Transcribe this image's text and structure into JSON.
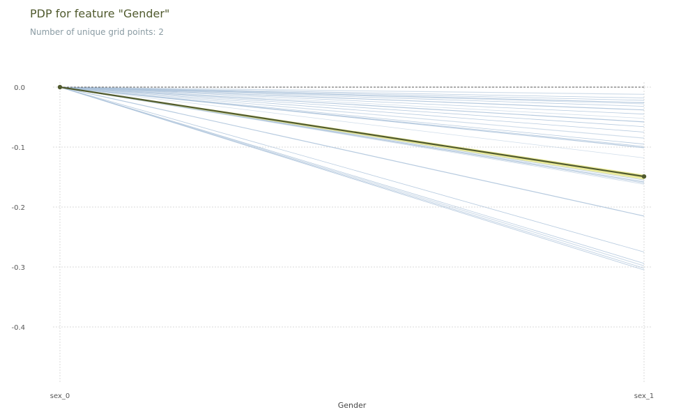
{
  "chart_data": {
    "type": "line",
    "title": "PDP for feature \"Gender\"",
    "subtitle": "Number of unique grid points: 2",
    "xlabel": "Gender",
    "ylabel": "",
    "categories": [
      "sex_0",
      "sex_1"
    ],
    "ylim": [
      -0.5,
      0.02
    ],
    "yticks": [
      0.0,
      -0.1,
      -0.2,
      -0.3,
      -0.4
    ],
    "ytick_labels": [
      "0.0",
      "-0.1",
      "-0.2",
      "-0.3",
      "-0.4"
    ],
    "grid": true,
    "baseline": 0.0,
    "ice_endpoints": [
      -0.012,
      -0.018,
      -0.022,
      -0.026,
      -0.028,
      -0.032,
      -0.038,
      -0.045,
      -0.052,
      -0.058,
      -0.066,
      -0.075,
      -0.085,
      -0.095,
      -0.099,
      -0.101,
      -0.118,
      -0.155,
      -0.158,
      -0.16,
      -0.162,
      -0.215,
      -0.275,
      -0.294,
      -0.298,
      -0.302,
      -0.305
    ],
    "pdp": {
      "values": [
        0.0,
        -0.149
      ],
      "std_band": [
        -0.146,
        -0.154
      ]
    },
    "colors": {
      "pdp_line": "#505a2e",
      "pdp_band": "#e6e68a",
      "ice_line": "#a9c1d9",
      "grid": "#d9d9d9",
      "baseline": "#555555"
    }
  }
}
